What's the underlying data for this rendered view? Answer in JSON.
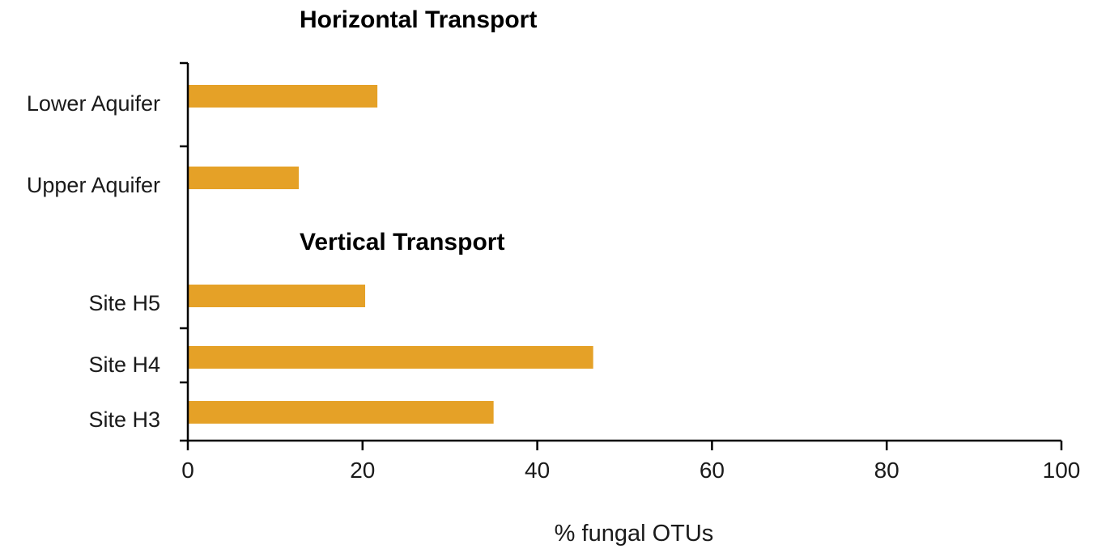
{
  "chart_data": {
    "type": "bar",
    "orientation": "horizontal",
    "categories": [
      "Lower Aquifer",
      "Upper Aquifer",
      "Site H5",
      "Site H4",
      "Site H3"
    ],
    "values": [
      21.7,
      12.7,
      20.3,
      46.4,
      35.0
    ],
    "groups": [
      {
        "title": "Horizontal Transport",
        "categories": [
          "Lower Aquifer",
          "Upper Aquifer"
        ]
      },
      {
        "title": "Vertical Transport",
        "categories": [
          "Site H5",
          "Site H4",
          "Site H3"
        ]
      }
    ],
    "xlabel": "% fungal OTUs",
    "ylabel": "",
    "xlim": [
      0,
      100
    ],
    "xticks": [
      0,
      20,
      40,
      60,
      80,
      100
    ],
    "xtick_labels": [
      "0",
      "20",
      "40",
      "60",
      "80",
      "100"
    ],
    "grid": false,
    "legend": "none",
    "bar_color": "#e5a127"
  }
}
